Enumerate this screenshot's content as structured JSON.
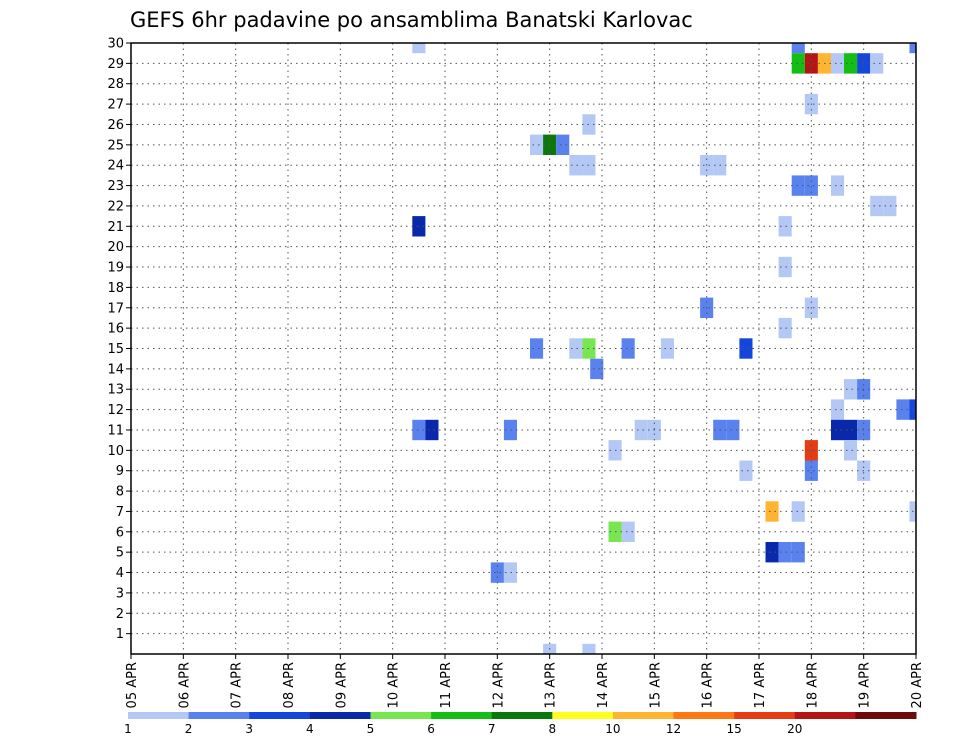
{
  "chart_data": {
    "type": "heatmap",
    "title": "GEFS 6hr padavine po ansamblima Banatski Karlovac",
    "x_tick_labels": [
      "05 APR",
      "06 APR",
      "07 APR",
      "08 APR",
      "09 APR",
      "10 APR",
      "11 APR",
      "12 APR",
      "13 APR",
      "14 APR",
      "15 APR",
      "16 APR",
      "17 APR",
      "18 APR",
      "19 APR",
      "20 APR"
    ],
    "y_tick_labels": [
      "1",
      "2",
      "3",
      "4",
      "5",
      "6",
      "7",
      "8",
      "9",
      "10",
      "11",
      "12",
      "13",
      "14",
      "15",
      "16",
      "17",
      "18",
      "19",
      "20",
      "21",
      "22",
      "23",
      "24",
      "25",
      "26",
      "27",
      "28",
      "29",
      "30"
    ],
    "x_range": [
      0,
      15
    ],
    "y_range": [
      0,
      30
    ],
    "x_unit": "days after 05 APR 00Z, 6-hour steps",
    "grid": true,
    "colorbar": {
      "labels": [
        "1",
        "2",
        "3",
        "4",
        "5",
        "6",
        "7",
        "8",
        "10",
        "12",
        "15",
        "20"
      ],
      "colors": [
        "#b4c8f5",
        "#5a82ee",
        "#1446dc",
        "#0a28aa",
        "#78e650",
        "#14be14",
        "#0a780a",
        "#ffff1e",
        "#ffb432",
        "#ff7814",
        "#e63c14",
        "#b41414",
        "#6e0a0a"
      ]
    },
    "cells": [
      {
        "member": 30,
        "x": 5.5,
        "v": 1
      },
      {
        "member": 30,
        "x": 12.75,
        "v": 2
      },
      {
        "member": 30,
        "x": 15.0,
        "v": 2
      },
      {
        "member": 29,
        "x": 12.75,
        "v": 6
      },
      {
        "member": 29,
        "x": 13.0,
        "v": 20
      },
      {
        "member": 29,
        "x": 13.25,
        "v": 10
      },
      {
        "member": 29,
        "x": 13.5,
        "v": 1
      },
      {
        "member": 29,
        "x": 13.75,
        "v": 6
      },
      {
        "member": 29,
        "x": 14.0,
        "v": 3
      },
      {
        "member": 29,
        "x": 14.25,
        "v": 1
      },
      {
        "member": 27,
        "x": 13.0,
        "v": 1
      },
      {
        "member": 26,
        "x": 8.75,
        "v": 1
      },
      {
        "member": 25,
        "x": 7.75,
        "v": 1
      },
      {
        "member": 25,
        "x": 8.0,
        "v": 7
      },
      {
        "member": 25,
        "x": 8.25,
        "v": 2
      },
      {
        "member": 24,
        "x": 8.5,
        "v": 1
      },
      {
        "member": 24,
        "x": 8.75,
        "v": 1
      },
      {
        "member": 24,
        "x": 11.0,
        "v": 1
      },
      {
        "member": 24,
        "x": 11.25,
        "v": 1
      },
      {
        "member": 23,
        "x": 12.75,
        "v": 2
      },
      {
        "member": 23,
        "x": 13.0,
        "v": 2
      },
      {
        "member": 23,
        "x": 13.5,
        "v": 1
      },
      {
        "member": 22,
        "x": 14.25,
        "v": 1
      },
      {
        "member": 22,
        "x": 14.5,
        "v": 1
      },
      {
        "member": 21,
        "x": 5.5,
        "v": 4
      },
      {
        "member": 21,
        "x": 12.5,
        "v": 1
      },
      {
        "member": 19,
        "x": 12.5,
        "v": 1
      },
      {
        "member": 17,
        "x": 11.0,
        "v": 2
      },
      {
        "member": 17,
        "x": 13.0,
        "v": 1
      },
      {
        "member": 16,
        "x": 12.5,
        "v": 1
      },
      {
        "member": 15,
        "x": 7.75,
        "v": 2
      },
      {
        "member": 15,
        "x": 8.5,
        "v": 1
      },
      {
        "member": 15,
        "x": 8.75,
        "v": 5
      },
      {
        "member": 15,
        "x": 9.5,
        "v": 2
      },
      {
        "member": 15,
        "x": 10.25,
        "v": 1
      },
      {
        "member": 15,
        "x": 11.75,
        "v": 3
      },
      {
        "member": 14,
        "x": 8.9,
        "v": 2
      },
      {
        "member": 13,
        "x": 13.75,
        "v": 1
      },
      {
        "member": 13,
        "x": 14.0,
        "v": 2
      },
      {
        "member": 12,
        "x": 13.5,
        "v": 1
      },
      {
        "member": 12,
        "x": 14.75,
        "v": 2
      },
      {
        "member": 12,
        "x": 15.0,
        "v": 3
      },
      {
        "member": 11,
        "x": 5.5,
        "v": 2
      },
      {
        "member": 11,
        "x": 5.75,
        "v": 4
      },
      {
        "member": 11,
        "x": 7.25,
        "v": 2
      },
      {
        "member": 11,
        "x": 9.75,
        "v": 1
      },
      {
        "member": 11,
        "x": 10.0,
        "v": 1
      },
      {
        "member": 11,
        "x": 11.25,
        "v": 2
      },
      {
        "member": 11,
        "x": 11.5,
        "v": 2
      },
      {
        "member": 11,
        "x": 13.5,
        "v": 4
      },
      {
        "member": 11,
        "x": 13.75,
        "v": 4
      },
      {
        "member": 11,
        "x": 14.0,
        "v": 2
      },
      {
        "member": 10,
        "x": 9.25,
        "v": 1
      },
      {
        "member": 10,
        "x": 13.0,
        "v": 15
      },
      {
        "member": 10,
        "x": 13.75,
        "v": 1
      },
      {
        "member": 9,
        "x": 11.75,
        "v": 1
      },
      {
        "member": 9,
        "x": 13.0,
        "v": 2
      },
      {
        "member": 9,
        "x": 14.0,
        "v": 1
      },
      {
        "member": 7,
        "x": 12.25,
        "v": 10
      },
      {
        "member": 7,
        "x": 12.75,
        "v": 1
      },
      {
        "member": 7,
        "x": 15.0,
        "v": 1
      },
      {
        "member": 6,
        "x": 9.25,
        "v": 5
      },
      {
        "member": 6,
        "x": 9.5,
        "v": 1
      },
      {
        "member": 5,
        "x": 12.25,
        "v": 4
      },
      {
        "member": 5,
        "x": 12.5,
        "v": 2
      },
      {
        "member": 5,
        "x": 12.75,
        "v": 2
      },
      {
        "member": 4,
        "x": 7.0,
        "v": 2
      },
      {
        "member": 4,
        "x": 7.25,
        "v": 1
      },
      {
        "member": 0,
        "x": 8.0,
        "v": 1
      },
      {
        "member": 0,
        "x": 8.75,
        "v": 1
      }
    ]
  }
}
